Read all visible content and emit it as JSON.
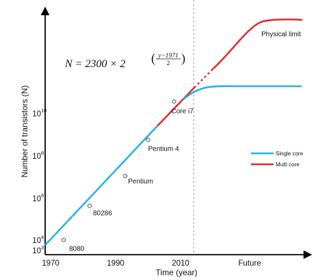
{
  "chart_data": {
    "type": "line",
    "title": "",
    "xlabel": "Time (year)",
    "ylabel": "Number of transistors (N)",
    "x_ticks": [
      "1970",
      "1990",
      "2010"
    ],
    "future_label": "Future",
    "y_ticks": [
      {
        "base": "10",
        "exp": "3",
        "value": 3
      },
      {
        "base": "10",
        "exp": "4",
        "value": 4
      },
      {
        "base": "10",
        "exp": "6",
        "value": 6
      },
      {
        "base": "10",
        "exp": "8",
        "value": 8
      },
      {
        "base": "10",
        "exp": "10",
        "value": 10
      }
    ],
    "y_scale": "log",
    "formula": {
      "lhs": "N = 2300 × 2",
      "exp_numerator": "y−1971",
      "exp_denominator": "2"
    },
    "series": [
      {
        "name": "Single core",
        "color": "#1fb2e8"
      },
      {
        "name": "Multi core",
        "color": "#e3262b"
      }
    ],
    "points": [
      {
        "label": "8080",
        "x": 1974,
        "y": 3.5
      },
      {
        "label": "80286",
        "x": 1982,
        "y": 5.1
      },
      {
        "label": "Pentium",
        "x": 1993,
        "y": 6.5
      },
      {
        "label": "Pentium 4",
        "x": 2000,
        "y": 8.2
      },
      {
        "label": "Core i7",
        "x": 2008,
        "y": 10
      }
    ],
    "annotations": [
      "Physical limit"
    ],
    "grid": false,
    "legend_position": "right"
  }
}
